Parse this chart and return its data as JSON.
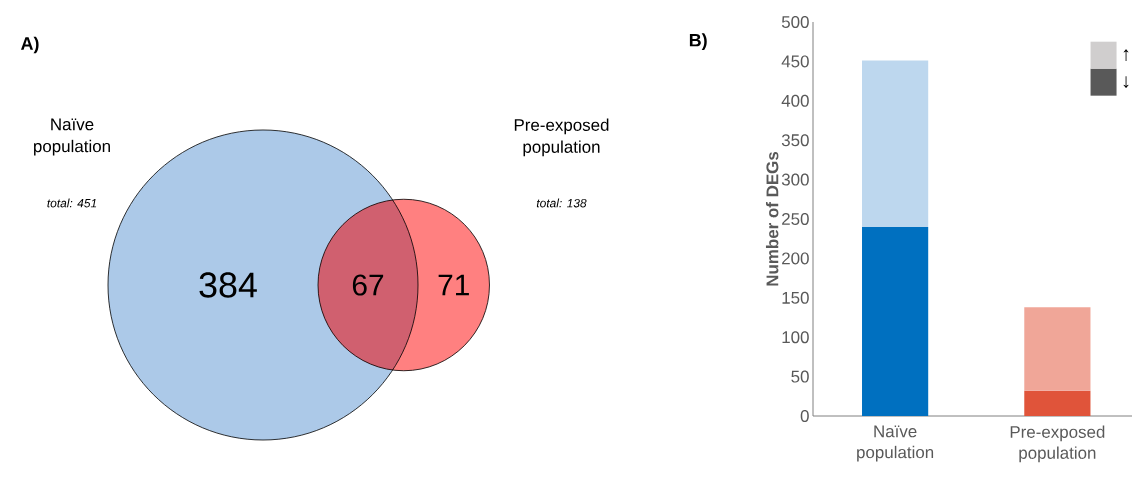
{
  "chart_data": [
    {
      "type": "other",
      "title": "A)",
      "categories": [
        "Naïve population",
        "Pre-exposed population"
      ],
      "values": [
        451,
        138
      ],
      "value_labels": [
        "total: 451",
        "total: 138"
      ],
      "colors": [
        "#acc9e8",
        "#ff8080"
      ],
      "annotations": [
        "384",
        "67",
        "71"
      ]
    },
    {
      "type": "bar",
      "title": "B)",
      "ylabel": "Number of DEGs",
      "categories": [
        "Naïve population",
        "Pre-exposed population"
      ],
      "stacked": true,
      "series": [
        {
          "name": "↓",
          "color": "#595959",
          "colors": [
            "#0070c0",
            "#e0543a"
          ],
          "values": [
            240,
            32
          ]
        },
        {
          "name": "↑",
          "color": "#d0cece",
          "colors": [
            "#bdd7ee",
            "#f0a698"
          ],
          "values": [
            211,
            106
          ]
        }
      ],
      "ylim": [
        0,
        500
      ],
      "yticks": [
        0,
        50,
        100,
        150,
        200,
        250,
        300,
        350,
        400,
        450,
        500
      ],
      "legend": "top right"
    }
  ]
}
